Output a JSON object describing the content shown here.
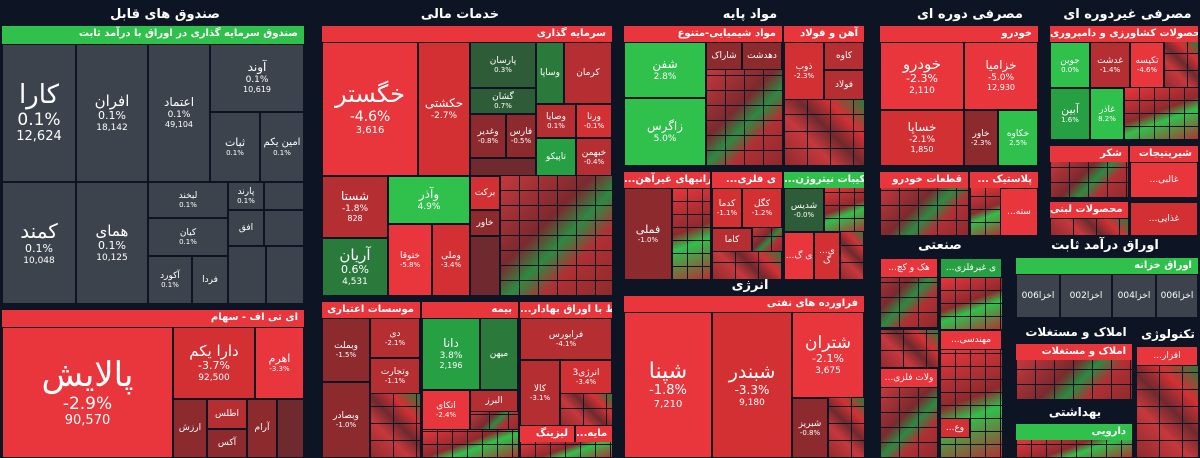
{
  "sections": {
    "funds": "صندوق های قابل معامله",
    "financial": "خدمات مالی",
    "basic": "مواد پایه",
    "cyclical": "مصرفی دوره ای",
    "noncyclical": "مصرفی غیردوره ای",
    "energy": "انرژی",
    "industrial": "صنعتی",
    "fixed_income": "اوراق درآمد ثابت",
    "realestate": "املاک و مستغلات",
    "tech": "تکنولوژی",
    "health": "بهداشتی"
  },
  "headers": {
    "fixed_fund": "صندوق سرمایه گذاری در اوراق با درآمد ثابت",
    "etf": "ای تی اف - سهام",
    "investment": "سرمایه گذاری",
    "credit": "موسسات اعتباری",
    "insurance": "بیمه",
    "securities": "...بط با اوراق بهادار",
    "leasing": "لیزینگ",
    "capital": "...مایه",
    "chem": "مواد شیمیایی-متنوع",
    "steel": "آهن و فولاد",
    "nonferrous": "...رانیهای غیرآهن",
    "metals": "...ی فلزی",
    "nitrogen": "...رکیبات نیتروژن",
    "refinery": "فراورده های نفتی",
    "auto": "خودرو",
    "autoparts": "قطعات خودرو",
    "plastic": "... پلاستیک",
    "textile": "...سته",
    "agri": "محصولات کشاورزی و دامپروری",
    "sugar": "شکر",
    "bev": "شیرینیجات",
    "food": "...غذایی",
    "dairy": "محصولات لبنی",
    "treasury": "اوراق خزانه",
    "realestate_sub": "املاک و مستغلات",
    "drug": "دارویی",
    "engineering": "...مهندسی",
    "metal_prod": "...ولات فلزی",
    "shipping": "...ی غیرفلزی",
    "machines": "...هک و کچ",
    "misc1": "...ی گ",
    "misc2": "...ی گ",
    "misc3": "...وع",
    "misc4": "...افزار"
  },
  "tiles": {
    "kara": {
      "n": "کارا",
      "p": "0.1%",
      "v": "12,624"
    },
    "afran": {
      "n": "افران",
      "p": "0.1%",
      "v": "18,142"
    },
    "etemad": {
      "n": "اعتماد",
      "p": "0.1%",
      "v": "49,104"
    },
    "avand": {
      "n": "آوند",
      "p": "0.1%",
      "v": "10,619"
    },
    "sabat": {
      "n": "ثبات",
      "p": "0.1%"
    },
    "amin": {
      "n": "امین یکم",
      "p": "0.1%"
    },
    "kamand": {
      "n": "کمند",
      "p": "0.1%",
      "v": "10,048"
    },
    "homay": {
      "n": "همای",
      "p": "0.1%",
      "v": "10,125"
    },
    "laikhand": {
      "n": "لبخند",
      "p": "0.1%"
    },
    "parand": {
      "n": "پارند",
      "p": "0.1%"
    },
    "kian": {
      "n": "کیان",
      "p": "0.1%"
    },
    "ofogh": {
      "n": "افق"
    },
    "akord": {
      "n": "آکورد",
      "p": "0.1%"
    },
    "farda": {
      "n": "فردا"
    },
    "palayesh": {
      "n": "پالایش",
      "p": "-2.9%",
      "v": "90,570"
    },
    "dara": {
      "n": "دارا یکم",
      "p": "-3.7%",
      "v": "92,500"
    },
    "ahrom": {
      "n": "اهرم",
      "p": "-3.3%"
    },
    "atlas": {
      "n": "اطلس"
    },
    "aram": {
      "n": "آرام"
    },
    "arzesh": {
      "n": "ارزش"
    },
    "aks": {
      "n": "آکس"
    },
    "khegostar": {
      "n": "خگستر",
      "p": "-4.6%",
      "v": "3,616"
    },
    "hekeshti": {
      "n": "حکشتی",
      "p": "-2.7%"
    },
    "parsan": {
      "n": "پارسان",
      "p": "0.3%"
    },
    "kerman": {
      "n": "کرمان"
    },
    "vesapa": {
      "n": "وساپا"
    },
    "gasht": {
      "n": "گشان",
      "p": "0.7%"
    },
    "vesapay": {
      "n": "وصایا",
      "p": "0.1%"
    },
    "vorna": {
      "n": "ورنا",
      "p": "-0.1%"
    },
    "vaghadir": {
      "n": "وغدیر",
      "p": "-0.8%"
    },
    "fars": {
      "n": "فارس",
      "p": "-0.5%"
    },
    "khebahman": {
      "n": "خبهمن",
      "p": "-0.4%"
    },
    "tapiko": {
      "n": "تاپیکو"
    },
    "shasta": {
      "n": "شستا",
      "p": "-1.8%",
      "v": "828"
    },
    "azar": {
      "n": "وآذر",
      "p": "4.9%"
    },
    "barakat": {
      "n": "برکت"
    },
    "khavar": {
      "n": "خاور"
    },
    "aryan": {
      "n": "آریان",
      "p": "0.6%",
      "v": "4,531"
    },
    "khotoga": {
      "n": "ختوقا",
      "p": "-5.8%"
    },
    "vamelli": {
      "n": "وملی",
      "p": "-3.4%"
    },
    "di": {
      "n": "دی",
      "p": "-2.1%"
    },
    "vamellat": {
      "n": "وبملت",
      "p": "-1.5%"
    },
    "vtejarat": {
      "n": "وتجارت",
      "p": "-1.1%"
    },
    "vpasargad": {
      "n": "وبصادر",
      "p": "-1.0%"
    },
    "dana": {
      "n": "دانا",
      "p": "3.8%",
      "v": "2,196"
    },
    "mihan": {
      "n": "میهن"
    },
    "alborz": {
      "n": "البرز"
    },
    "lekima": {
      "n": "اتکای",
      "p": "-2.4%"
    },
    "faraborse": {
      "n": "فرابورس",
      "p": "-4.1%"
    },
    "kala": {
      "n": "کالا",
      "p": "-3.1%"
    },
    "energy3": {
      "n": "انرژی3",
      "p": "-3.4%"
    },
    "shafan": {
      "n": "شفن",
      "p": "2.8%"
    },
    "zagros": {
      "n": "زاگرس",
      "p": "5.0%"
    },
    "sharak": {
      "n": "شاراک"
    },
    "dehdasht": {
      "n": "دهدشت"
    },
    "kave": {
      "n": "کاوه"
    },
    "zob": {
      "n": "ذوب",
      "p": "-2.3%"
    },
    "foulad": {
      "n": "فولاد"
    },
    "femli": {
      "n": "فملی",
      "p": "-1.0%"
    },
    "kagol": {
      "n": "کگل",
      "p": "-1.2%"
    },
    "kadma": {
      "n": "کدما",
      "p": "-1.1%"
    },
    "kaveh2": {
      "n": "کاما"
    },
    "shedis": {
      "n": "شدیس",
      "p": "-0.0%"
    },
    "shapna": {
      "n": "شپنا",
      "p": "-1.8%",
      "v": "7,210"
    },
    "shendar": {
      "n": "شبندر",
      "p": "-3.3%",
      "v": "9,180"
    },
    "shatran": {
      "n": "شتران",
      "p": "-2.1%",
      "v": "3,675"
    },
    "shariz": {
      "n": "شبریز",
      "p": "-0.8%"
    },
    "khodro": {
      "n": "خودرو",
      "p": "-2.3%",
      "v": "2,110"
    },
    "khazamia": {
      "n": "خزامیا",
      "p": "-5.0%",
      "v": "12,930"
    },
    "khasapa": {
      "n": "خساپا",
      "p": "-2.1%",
      "v": "1,850"
    },
    "khavar2": {
      "n": "خاور",
      "p": "-2.3%"
    },
    "khekahe": {
      "n": "خکاوه",
      "p": "2.5%"
    },
    "joyin": {
      "n": "جوین",
      "p": "0.0%"
    },
    "ghadesht": {
      "n": "غدشت",
      "p": "-1.4%"
    },
    "tibarse": {
      "n": "تکیسه",
      "p": "-4.6%"
    },
    "abin": {
      "n": "آبین",
      "p": "1.6%"
    },
    "ghazar": {
      "n": "غاذر",
      "p": "8.2%"
    },
    "ghalibi": {
      "n": "...غالبی"
    },
    "khazane1": {
      "n": "اخزا006"
    },
    "khazane2": {
      "n": "اخزا002"
    },
    "khazane3": {
      "n": "اخزا004"
    },
    "khazane4": {
      "n": "اخزا006"
    }
  },
  "colors": {
    "bg": "#0d1524",
    "gray": "#3d434c",
    "red": "#e8363c",
    "green": "#2fc14c"
  }
}
